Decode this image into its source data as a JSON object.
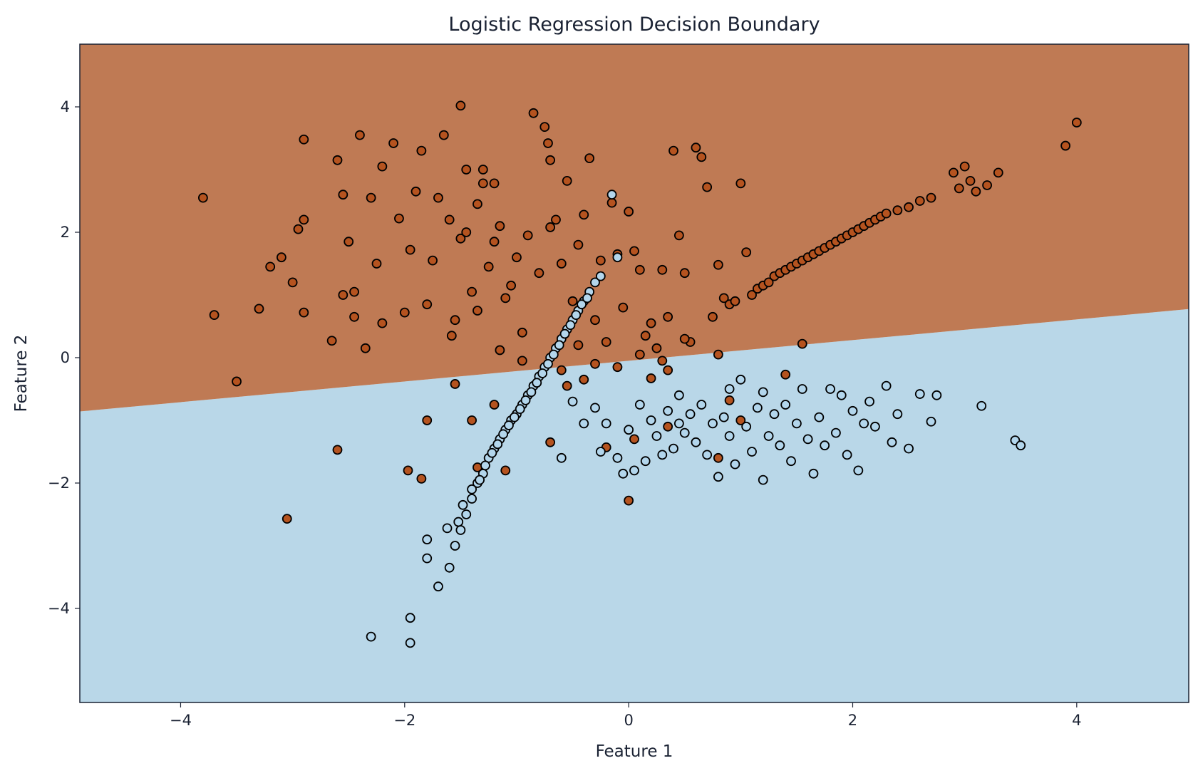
{
  "chart_data": {
    "type": "scatter",
    "title": "Logistic Regression Decision Boundary",
    "xlabel": "Feature 1",
    "ylabel": "Feature 2",
    "xlim": [
      -4.9,
      5.0
    ],
    "ylim": [
      -5.5,
      5.0
    ],
    "xticks": [
      -4,
      -2,
      0,
      2,
      4
    ],
    "yticks": [
      -4,
      -2,
      0,
      2,
      4
    ],
    "grid": false,
    "legend": "none",
    "decision_boundary": {
      "intercept": -0.05,
      "slope": 0.165
    },
    "regions": [
      {
        "class": 1,
        "side": "above",
        "color": "#bf7a54"
      },
      {
        "class": 0,
        "side": "below",
        "color": "#b9d7e8"
      }
    ],
    "series": [
      {
        "class": 1,
        "color": "#b5531f",
        "points": [
          [
            -3.8,
            2.55
          ],
          [
            -3.7,
            0.68
          ],
          [
            -3.5,
            -0.38
          ],
          [
            -3.3,
            0.78
          ],
          [
            -3.2,
            1.45
          ],
          [
            -3.1,
            1.6
          ],
          [
            -3.05,
            -2.57
          ],
          [
            -3.0,
            1.2
          ],
          [
            -2.9,
            3.48
          ],
          [
            -2.95,
            2.05
          ],
          [
            -2.9,
            0.72
          ],
          [
            -2.9,
            2.2
          ],
          [
            -2.65,
            0.27
          ],
          [
            -2.6,
            -1.47
          ],
          [
            -2.6,
            3.15
          ],
          [
            -2.55,
            2.6
          ],
          [
            -2.55,
            1.0
          ],
          [
            -2.5,
            1.85
          ],
          [
            -2.45,
            0.65
          ],
          [
            -2.45,
            1.05
          ],
          [
            -2.4,
            3.55
          ],
          [
            -2.35,
            0.15
          ],
          [
            -2.3,
            2.55
          ],
          [
            -2.25,
            1.5
          ],
          [
            -2.2,
            0.55
          ],
          [
            -2.2,
            3.05
          ],
          [
            -2.1,
            3.42
          ],
          [
            -2.05,
            2.22
          ],
          [
            -2.0,
            0.72
          ],
          [
            -1.95,
            1.72
          ],
          [
            -1.9,
            2.65
          ],
          [
            -1.85,
            3.3
          ],
          [
            -1.8,
            0.85
          ],
          [
            -1.75,
            1.55
          ],
          [
            -1.7,
            2.55
          ],
          [
            -1.65,
            3.55
          ],
          [
            -1.6,
            2.2
          ],
          [
            -1.58,
            0.35
          ],
          [
            -1.55,
            -0.42
          ],
          [
            -1.5,
            1.9
          ],
          [
            -1.45,
            2.0
          ],
          [
            -1.4,
            1.05
          ],
          [
            -1.35,
            0.75
          ],
          [
            -1.3,
            2.78
          ],
          [
            -1.25,
            1.45
          ],
          [
            -1.2,
            2.78
          ],
          [
            -1.15,
            2.1
          ],
          [
            -1.1,
            0.95
          ],
          [
            -1.8,
            -1.0
          ],
          [
            -1.97,
            -1.8
          ],
          [
            -1.85,
            -1.93
          ],
          [
            -1.55,
            0.6
          ],
          [
            -1.5,
            4.02
          ],
          [
            -1.45,
            3.0
          ],
          [
            -1.35,
            2.45
          ],
          [
            -1.3,
            3.0
          ],
          [
            -1.2,
            1.85
          ],
          [
            -1.15,
            0.12
          ],
          [
            -1.05,
            1.15
          ],
          [
            -1.0,
            1.6
          ],
          [
            -0.95,
            0.4
          ],
          [
            -0.9,
            1.95
          ],
          [
            -0.85,
            3.9
          ],
          [
            -0.8,
            1.35
          ],
          [
            -0.75,
            3.68
          ],
          [
            -0.72,
            3.42
          ],
          [
            -0.7,
            3.15
          ],
          [
            -0.7,
            2.08
          ],
          [
            -0.65,
            2.2
          ],
          [
            -0.6,
            1.5
          ],
          [
            -0.55,
            2.82
          ],
          [
            -0.5,
            0.9
          ],
          [
            -0.45,
            1.8
          ],
          [
            -0.4,
            2.28
          ],
          [
            -0.35,
            3.18
          ],
          [
            -0.3,
            0.6
          ],
          [
            -0.25,
            1.55
          ],
          [
            -0.2,
            0.25
          ],
          [
            -0.15,
            2.47
          ],
          [
            -0.1,
            1.65
          ],
          [
            -0.05,
            0.8
          ],
          [
            0.0,
            2.33
          ],
          [
            0.05,
            1.7
          ],
          [
            0.1,
            1.4
          ],
          [
            0.15,
            0.35
          ],
          [
            0.2,
            0.55
          ],
          [
            0.25,
            0.15
          ],
          [
            0.3,
            1.4
          ],
          [
            0.35,
            0.65
          ],
          [
            0.4,
            3.3
          ],
          [
            0.45,
            1.95
          ],
          [
            0.5,
            1.35
          ],
          [
            0.55,
            0.25
          ],
          [
            0.6,
            3.35
          ],
          [
            0.65,
            3.2
          ],
          [
            0.7,
            2.72
          ],
          [
            0.75,
            0.65
          ],
          [
            0.8,
            1.48
          ],
          [
            0.85,
            0.95
          ],
          [
            0.9,
            0.85
          ],
          [
            0.95,
            0.9
          ],
          [
            1.0,
            2.78
          ],
          [
            1.05,
            1.68
          ],
          [
            1.1,
            1.0
          ],
          [
            1.15,
            1.1
          ],
          [
            1.2,
            1.15
          ],
          [
            1.25,
            1.2
          ],
          [
            1.3,
            1.3
          ],
          [
            1.35,
            1.35
          ],
          [
            1.4,
            1.4
          ],
          [
            1.45,
            1.45
          ],
          [
            1.5,
            1.5
          ],
          [
            1.55,
            1.55
          ],
          [
            1.6,
            1.6
          ],
          [
            1.65,
            1.65
          ],
          [
            1.7,
            1.7
          ],
          [
            1.75,
            1.75
          ],
          [
            1.8,
            1.8
          ],
          [
            1.85,
            1.85
          ],
          [
            1.9,
            1.9
          ],
          [
            1.95,
            1.95
          ],
          [
            2.0,
            2.0
          ],
          [
            2.05,
            2.05
          ],
          [
            2.1,
            2.1
          ],
          [
            2.15,
            2.15
          ],
          [
            2.2,
            2.2
          ],
          [
            2.25,
            2.25
          ],
          [
            2.3,
            2.3
          ],
          [
            2.4,
            2.35
          ],
          [
            2.5,
            2.4
          ],
          [
            2.6,
            2.5
          ],
          [
            2.7,
            2.55
          ],
          [
            2.9,
            2.95
          ],
          [
            2.95,
            2.7
          ],
          [
            3.0,
            3.05
          ],
          [
            3.05,
            2.82
          ],
          [
            3.1,
            2.65
          ],
          [
            3.2,
            2.75
          ],
          [
            3.3,
            2.95
          ],
          [
            3.9,
            3.38
          ],
          [
            4.0,
            3.75
          ],
          [
            -0.7,
            -1.35
          ],
          [
            -0.2,
            -1.43
          ],
          [
            0.0,
            -2.28
          ],
          [
            0.2,
            -0.33
          ],
          [
            0.35,
            -0.2
          ],
          [
            0.8,
            -1.6
          ],
          [
            0.9,
            -0.68
          ],
          [
            1.0,
            -1.0
          ],
          [
            1.4,
            -0.27
          ],
          [
            1.55,
            0.22
          ],
          [
            -0.55,
            -0.45
          ],
          [
            -0.4,
            -0.35
          ],
          [
            -0.3,
            -0.1
          ],
          [
            -0.1,
            -0.15
          ],
          [
            0.1,
            0.05
          ],
          [
            0.3,
            -0.05
          ],
          [
            0.5,
            0.3
          ],
          [
            -1.4,
            -1.0
          ],
          [
            -1.35,
            -1.75
          ],
          [
            -1.1,
            -1.8
          ],
          [
            -1.2,
            -0.75
          ],
          [
            -0.95,
            -0.05
          ],
          [
            -0.6,
            -0.2
          ],
          [
            -0.45,
            0.2
          ],
          [
            0.05,
            -1.3
          ],
          [
            0.35,
            -1.1
          ],
          [
            0.8,
            0.05
          ]
        ]
      },
      {
        "class": 0,
        "color": "#b3d6ec",
        "points": [
          [
            -2.3,
            -4.45
          ],
          [
            -1.95,
            -4.55
          ],
          [
            -1.95,
            -4.15
          ],
          [
            -1.7,
            -3.65
          ],
          [
            -1.8,
            -3.2
          ],
          [
            -1.8,
            -2.9
          ],
          [
            -1.6,
            -3.35
          ],
          [
            -1.55,
            -3.0
          ],
          [
            -1.5,
            -2.75
          ],
          [
            -1.45,
            -2.5
          ],
          [
            -1.4,
            -2.25
          ],
          [
            -1.35,
            -2.0
          ],
          [
            -1.3,
            -1.85
          ],
          [
            -1.25,
            -1.6
          ],
          [
            -1.2,
            -1.45
          ],
          [
            -1.15,
            -1.3
          ],
          [
            -1.1,
            -1.15
          ],
          [
            -1.05,
            -1.0
          ],
          [
            -1.0,
            -0.9
          ],
          [
            -0.95,
            -0.75
          ],
          [
            -0.9,
            -0.6
          ],
          [
            -0.85,
            -0.45
          ],
          [
            -0.8,
            -0.3
          ],
          [
            -0.75,
            -0.15
          ],
          [
            -0.7,
            0.0
          ],
          [
            -0.65,
            0.15
          ],
          [
            -0.6,
            0.3
          ],
          [
            -0.55,
            0.45
          ],
          [
            -0.5,
            0.6
          ],
          [
            -0.45,
            0.75
          ],
          [
            -0.4,
            0.9
          ],
          [
            -0.35,
            1.05
          ],
          [
            -0.3,
            1.2
          ],
          [
            -0.25,
            1.3
          ],
          [
            -0.1,
            1.6
          ],
          [
            -0.15,
            2.6
          ],
          [
            -1.62,
            -2.72
          ],
          [
            -1.52,
            -2.62
          ],
          [
            -1.48,
            -2.35
          ],
          [
            -1.4,
            -2.1
          ],
          [
            -1.33,
            -1.95
          ],
          [
            -1.28,
            -1.72
          ],
          [
            -1.22,
            -1.52
          ],
          [
            -1.17,
            -1.38
          ],
          [
            -1.12,
            -1.22
          ],
          [
            -1.07,
            -1.08
          ],
          [
            -1.02,
            -0.95
          ],
          [
            -0.97,
            -0.82
          ],
          [
            -0.92,
            -0.68
          ],
          [
            -0.87,
            -0.55
          ],
          [
            -0.82,
            -0.4
          ],
          [
            -0.77,
            -0.25
          ],
          [
            -0.72,
            -0.1
          ],
          [
            -0.67,
            0.05
          ],
          [
            -0.62,
            0.2
          ],
          [
            -0.57,
            0.38
          ],
          [
            -0.52,
            0.52
          ],
          [
            -0.47,
            0.68
          ],
          [
            -0.42,
            0.85
          ],
          [
            -0.37,
            0.95
          ],
          [
            -0.6,
            -1.6
          ],
          [
            -0.5,
            -0.7
          ],
          [
            -0.4,
            -1.05
          ],
          [
            -0.3,
            -0.8
          ],
          [
            -0.2,
            -1.05
          ],
          [
            -0.1,
            -1.6
          ],
          [
            0.0,
            -1.15
          ],
          [
            0.1,
            -0.75
          ],
          [
            0.15,
            -1.65
          ],
          [
            0.2,
            -1.0
          ],
          [
            0.25,
            -1.25
          ],
          [
            0.3,
            -1.55
          ],
          [
            0.35,
            -0.85
          ],
          [
            0.4,
            -1.45
          ],
          [
            0.45,
            -0.6
          ],
          [
            0.5,
            -1.2
          ],
          [
            0.55,
            -0.9
          ],
          [
            0.6,
            -1.35
          ],
          [
            0.65,
            -0.75
          ],
          [
            0.7,
            -1.55
          ],
          [
            0.75,
            -1.05
          ],
          [
            0.8,
            -1.9
          ],
          [
            0.85,
            -0.95
          ],
          [
            0.9,
            -1.25
          ],
          [
            0.95,
            -1.7
          ],
          [
            1.0,
            -0.35
          ],
          [
            1.05,
            -1.1
          ],
          [
            1.1,
            -1.5
          ],
          [
            1.15,
            -0.8
          ],
          [
            1.2,
            -1.95
          ],
          [
            1.25,
            -1.25
          ],
          [
            1.3,
            -0.9
          ],
          [
            1.35,
            -1.4
          ],
          [
            1.4,
            -0.75
          ],
          [
            1.45,
            -1.65
          ],
          [
            1.5,
            -1.05
          ],
          [
            1.55,
            -0.5
          ],
          [
            1.6,
            -1.3
          ],
          [
            1.65,
            -1.85
          ],
          [
            1.7,
            -0.95
          ],
          [
            1.75,
            -1.4
          ],
          [
            1.8,
            -0.5
          ],
          [
            1.85,
            -1.2
          ],
          [
            1.9,
            -0.6
          ],
          [
            1.95,
            -1.55
          ],
          [
            2.0,
            -0.85
          ],
          [
            2.05,
            -1.8
          ],
          [
            2.1,
            -1.05
          ],
          [
            2.15,
            -0.7
          ],
          [
            2.2,
            -1.1
          ],
          [
            2.3,
            -0.45
          ],
          [
            2.35,
            -1.35
          ],
          [
            2.4,
            -0.9
          ],
          [
            2.5,
            -1.45
          ],
          [
            2.6,
            -0.58
          ],
          [
            2.7,
            -1.02
          ],
          [
            2.75,
            -0.6
          ],
          [
            3.15,
            -0.77
          ],
          [
            3.45,
            -1.32
          ],
          [
            3.5,
            -1.4
          ],
          [
            -0.25,
            -1.5
          ],
          [
            -0.05,
            -1.85
          ],
          [
            0.05,
            -1.8
          ],
          [
            0.45,
            -1.05
          ],
          [
            1.2,
            -0.55
          ],
          [
            0.9,
            -0.5
          ]
        ]
      }
    ]
  }
}
